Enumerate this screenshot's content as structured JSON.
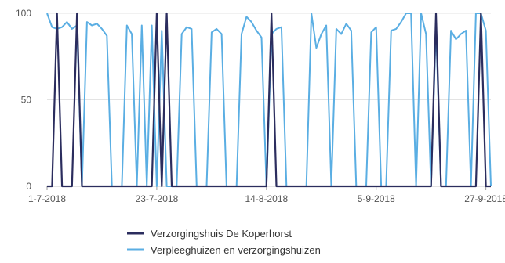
{
  "chart_data": {
    "type": "line",
    "ylim": [
      0,
      100
    ],
    "yticks": [
      0,
      50,
      100
    ],
    "x_start": "1-7-2018",
    "x_end": "30-9-2018",
    "xtick_labels": [
      "1-7-2018",
      "23-7-2018",
      "14-8-2018",
      "5-9-2018",
      "27-9-2018"
    ],
    "grid": "horizontal",
    "legend_position": "bottom",
    "series": [
      {
        "name": "Verzorgingshuis De Koperhorst",
        "color": "#2b2d5e",
        "y_first": true,
        "points": [
          [
            1,
            0
          ],
          [
            2,
            0
          ],
          [
            3,
            100
          ],
          [
            4,
            0
          ],
          [
            5,
            0
          ],
          [
            6,
            0
          ],
          [
            7,
            100
          ],
          [
            8,
            0
          ],
          [
            9,
            0
          ],
          [
            10,
            0
          ],
          [
            11,
            0
          ],
          [
            12,
            0
          ],
          [
            13,
            0
          ],
          [
            14,
            0
          ],
          [
            15,
            0
          ],
          [
            16,
            0
          ],
          [
            17,
            0
          ],
          [
            18,
            0
          ],
          [
            19,
            0
          ],
          [
            20,
            0
          ],
          [
            21,
            0
          ],
          [
            22,
            0
          ],
          [
            23,
            100
          ],
          [
            24,
            0
          ],
          [
            25,
            100
          ],
          [
            26,
            0
          ],
          [
            27,
            0
          ],
          [
            28,
            0
          ],
          [
            29,
            0
          ],
          [
            30,
            0
          ],
          [
            31,
            0
          ],
          [
            32,
            0
          ],
          [
            33,
            0
          ],
          [
            34,
            0
          ],
          [
            35,
            0
          ],
          [
            36,
            0
          ],
          [
            37,
            0
          ],
          [
            38,
            0
          ],
          [
            39,
            0
          ],
          [
            40,
            0
          ],
          [
            41,
            0
          ],
          [
            42,
            0
          ],
          [
            43,
            0
          ],
          [
            44,
            0
          ],
          [
            45,
            0
          ],
          [
            46,
            100
          ],
          [
            47,
            0
          ],
          [
            48,
            0
          ],
          [
            49,
            0
          ],
          [
            50,
            0
          ],
          [
            51,
            0
          ],
          [
            52,
            0
          ],
          [
            53,
            0
          ],
          [
            54,
            0
          ],
          [
            55,
            0
          ],
          [
            56,
            0
          ],
          [
            57,
            0
          ],
          [
            58,
            0
          ],
          [
            59,
            0
          ],
          [
            60,
            0
          ],
          [
            61,
            0
          ],
          [
            62,
            0
          ],
          [
            63,
            0
          ],
          [
            64,
            0
          ],
          [
            65,
            0
          ],
          [
            66,
            0
          ],
          [
            67,
            0
          ],
          [
            68,
            0
          ],
          [
            69,
            0
          ],
          [
            70,
            0
          ],
          [
            71,
            0
          ],
          [
            72,
            0
          ],
          [
            73,
            0
          ],
          [
            74,
            0
          ],
          [
            75,
            0
          ],
          [
            76,
            0
          ],
          [
            77,
            0
          ],
          [
            78,
            0
          ],
          [
            79,
            100
          ],
          [
            80,
            0
          ],
          [
            81,
            0
          ],
          [
            82,
            0
          ],
          [
            83,
            0
          ],
          [
            84,
            0
          ],
          [
            85,
            0
          ],
          [
            86,
            0
          ],
          [
            87,
            0
          ],
          [
            88,
            100
          ],
          [
            89,
            0
          ],
          [
            90,
            0
          ]
        ]
      },
      {
        "name": "Verpleeghuizen en verzorgingshuizen",
        "color": "#5aaee3",
        "points": [
          [
            1,
            100
          ],
          [
            2,
            92
          ],
          [
            3,
            91
          ],
          [
            4,
            92
          ],
          [
            5,
            95
          ],
          [
            6,
            91
          ],
          [
            7,
            93
          ],
          [
            8,
            0
          ],
          [
            9,
            95
          ],
          [
            10,
            93
          ],
          [
            11,
            94
          ],
          [
            12,
            91
          ],
          [
            13,
            87
          ],
          [
            14,
            0
          ],
          [
            15,
            0
          ],
          [
            16,
            0
          ],
          [
            17,
            93
          ],
          [
            18,
            88
          ],
          [
            19,
            0
          ],
          [
            20,
            93
          ],
          [
            21,
            0
          ],
          [
            22,
            93
          ],
          [
            23,
            0
          ],
          [
            24,
            90
          ],
          [
            25,
            0
          ],
          [
            26,
            0
          ],
          [
            27,
            0
          ],
          [
            28,
            88
          ],
          [
            29,
            92
          ],
          [
            30,
            91
          ],
          [
            31,
            0
          ],
          [
            32,
            0
          ],
          [
            33,
            0
          ],
          [
            34,
            89
          ],
          [
            35,
            91
          ],
          [
            36,
            88
          ],
          [
            37,
            0
          ],
          [
            38,
            0
          ],
          [
            39,
            0
          ],
          [
            40,
            88
          ],
          [
            41,
            98
          ],
          [
            42,
            95
          ],
          [
            43,
            90
          ],
          [
            44,
            86
          ],
          [
            45,
            0
          ],
          [
            46,
            88
          ],
          [
            47,
            91
          ],
          [
            48,
            92
          ],
          [
            49,
            0
          ],
          [
            50,
            0
          ],
          [
            51,
            0
          ],
          [
            52,
            0
          ],
          [
            53,
            0
          ],
          [
            54,
            100
          ],
          [
            55,
            80
          ],
          [
            56,
            88
          ],
          [
            57,
            93
          ],
          [
            58,
            0
          ],
          [
            59,
            91
          ],
          [
            60,
            88
          ],
          [
            61,
            94
          ],
          [
            62,
            90
          ],
          [
            63,
            0
          ],
          [
            64,
            0
          ],
          [
            65,
            0
          ],
          [
            66,
            89
          ],
          [
            67,
            92
          ],
          [
            68,
            0
          ],
          [
            69,
            0
          ],
          [
            70,
            90
          ],
          [
            71,
            91
          ],
          [
            72,
            95
          ],
          [
            73,
            100
          ],
          [
            74,
            100
          ],
          [
            75,
            0
          ],
          [
            76,
            100
          ],
          [
            77,
            88
          ],
          [
            78,
            0
          ],
          [
            79,
            93
          ],
          [
            80,
            0
          ],
          [
            81,
            0
          ],
          [
            82,
            90
          ],
          [
            83,
            85
          ],
          [
            84,
            88
          ],
          [
            85,
            90
          ],
          [
            86,
            0
          ],
          [
            87,
            100
          ],
          [
            88,
            100
          ],
          [
            89,
            90
          ],
          [
            90,
            0
          ]
        ]
      }
    ]
  }
}
